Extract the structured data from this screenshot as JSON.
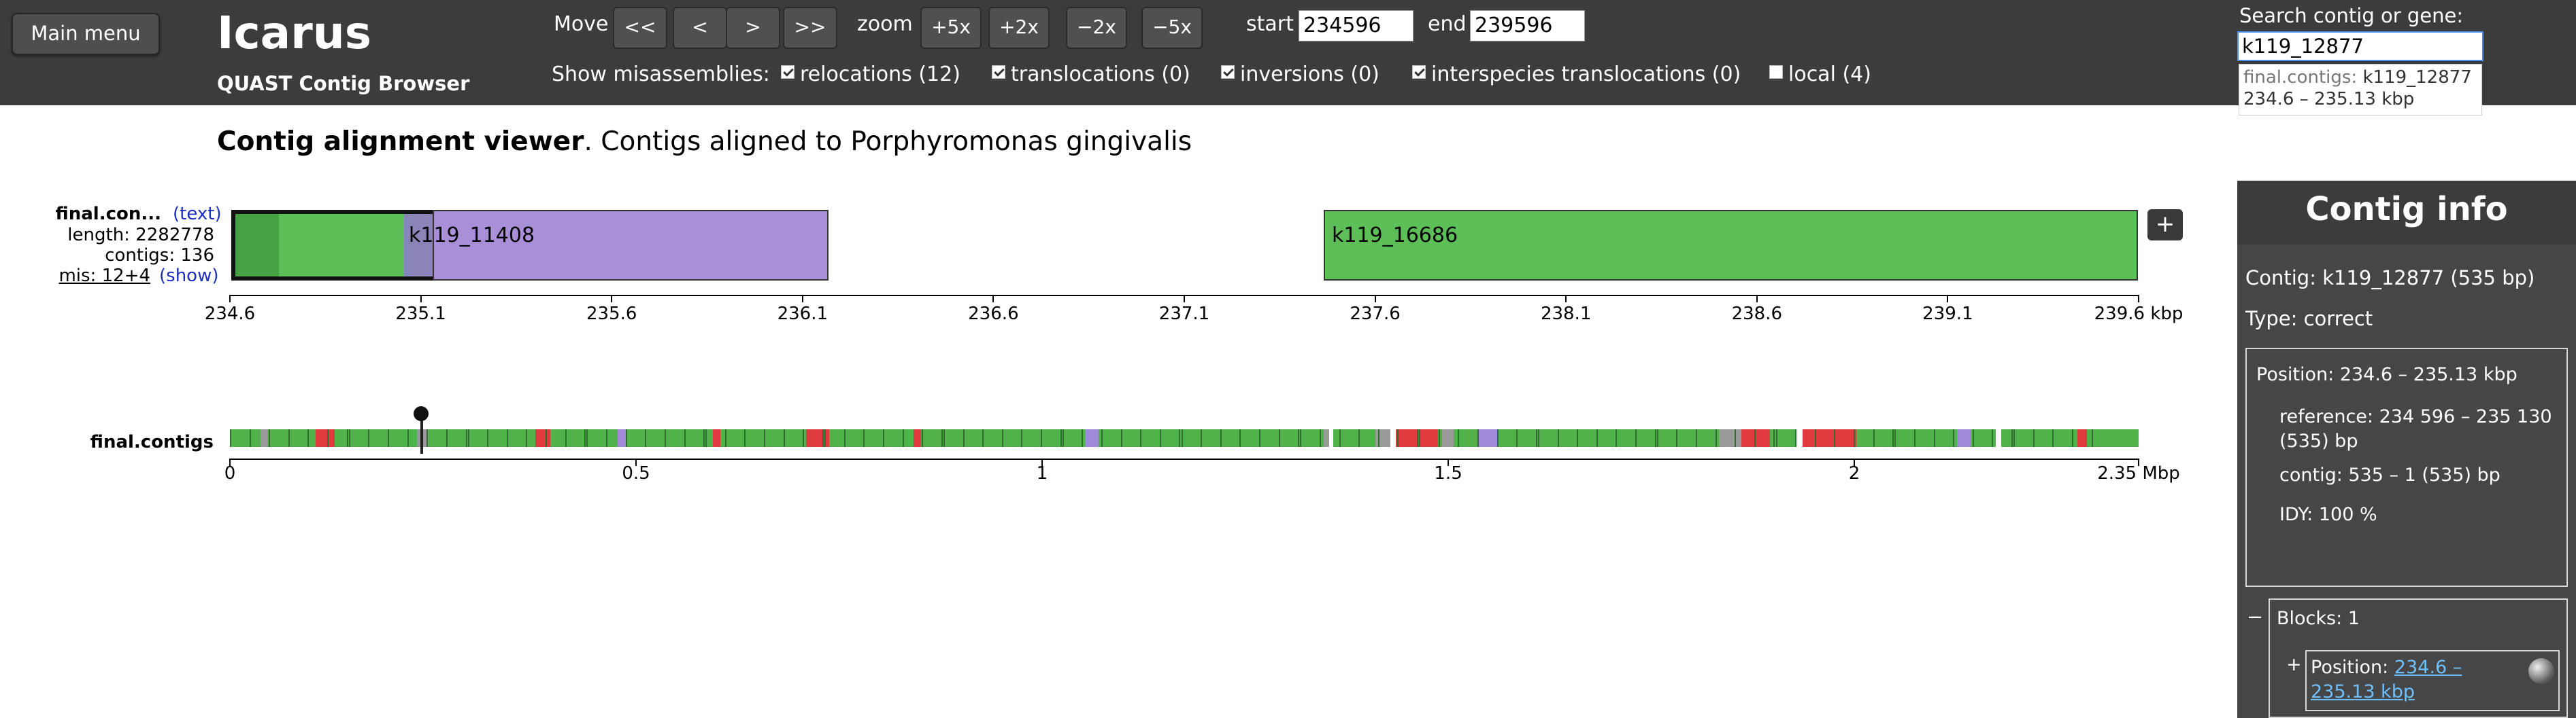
{
  "header": {
    "main_menu": "Main menu",
    "title": "Icarus",
    "subtitle": "QUAST Contig Browser",
    "move_label": "Move",
    "move_buttons": [
      "<<",
      "<",
      ">",
      ">>"
    ],
    "zoom_label": "zoom",
    "zoom_buttons": [
      "+5x",
      "+2x",
      "−2x",
      "−5x"
    ],
    "start_label": "start",
    "start_value": "234596",
    "end_label": "end",
    "end_value": "239596",
    "misassemblies_label": "Show misassemblies:",
    "misassembly_options": [
      {
        "label": "relocations (12)",
        "checked": true
      },
      {
        "label": "translocations (0)",
        "checked": true
      },
      {
        "label": "inversions (0)",
        "checked": true
      },
      {
        "label": "interspecies translocations (0)",
        "checked": true
      },
      {
        "label": "local (4)",
        "checked": false
      }
    ],
    "search_label": "Search contig or gene:",
    "search_value": "k119_12877",
    "suggestion_prefix": "final.contigs:",
    "suggestion_name": "k119_12877",
    "suggestion_range": "234.6 – 235.13 kbp"
  },
  "page": {
    "heading_bold": "Contig alignment viewer",
    "heading_rest": ". Contigs aligned to Porphyromonas gingivalis"
  },
  "detail_track": {
    "assembly_name": "final.con...",
    "text_link": "(text)",
    "length": "length: 2282778",
    "contigs": "contigs: 136",
    "mis": "mis: 12+4",
    "show_link": "(show)",
    "plus": "+",
    "axis_ticks": [
      "234.6",
      "235.1",
      "235.6",
      "236.1",
      "236.6",
      "237.1",
      "237.6",
      "238.1",
      "238.6",
      "239.1",
      "239.6 kbp"
    ],
    "contigs_shown": [
      {
        "name": "",
        "start_kbp": 234.6,
        "end_kbp": 235.13,
        "color": "#5cbf58",
        "selected": true
      },
      {
        "name": "k119_11408",
        "start_kbp": 235.1,
        "end_kbp": 236.17,
        "color": "#a98fd8"
      },
      {
        "name": "k119_16686",
        "start_kbp": 237.9,
        "end_kbp": 239.6,
        "color": "#5cbf58"
      }
    ]
  },
  "overview_track": {
    "assembly_name": "final.contigs",
    "axis_ticks": [
      "0",
      "0.5",
      "1",
      "1.5",
      "2",
      "2.35 Mbp"
    ],
    "axis_values": [
      0,
      0.5,
      1,
      1.5,
      2,
      2.35
    ],
    "colors": {
      "correct": "#4fb34a",
      "misassembled": "#e0393e",
      "ambiguous": "#9e8ad8",
      "unaligned": "#999999"
    }
  },
  "contig_info": {
    "title": "Contig info",
    "contig": "Contig: k119_12877 (535 bp)",
    "type": "Type: correct",
    "position": "Position: 234.6 – 235.13 kbp",
    "reference": "reference: 234 596 – 235 130 (535) bp",
    "contig_coords": "contig: 535 – 1 (535) bp",
    "idy": "IDY: 100 %",
    "blocks_toggle": "−",
    "blocks": "Blocks: 1",
    "block_toggle": "+",
    "block_position_label": "Position:",
    "block_position_link": "234.6 – 235.13 kbp"
  }
}
